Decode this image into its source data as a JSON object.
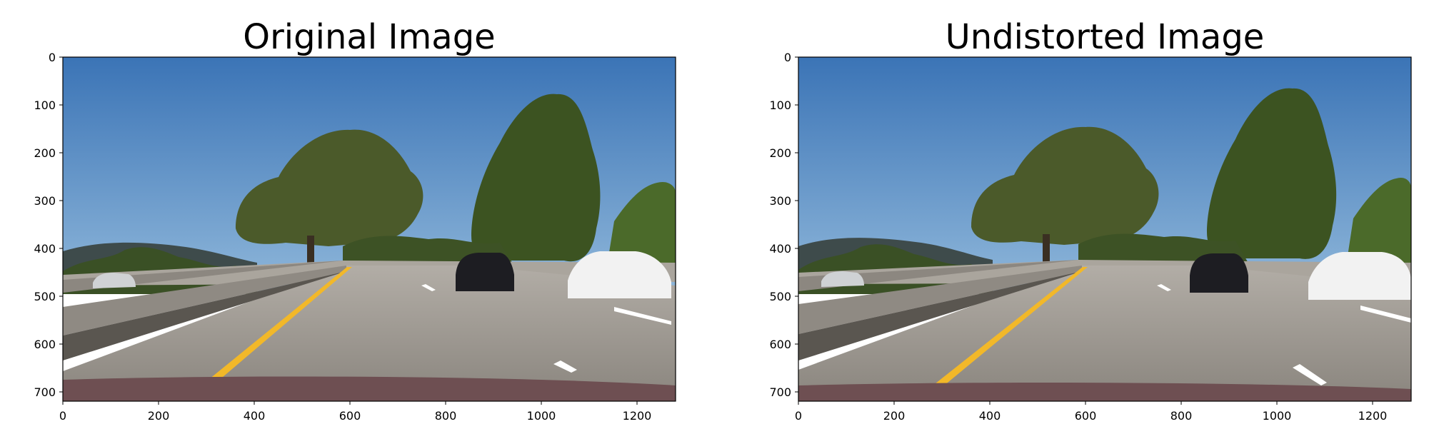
{
  "panels": [
    {
      "title": "Original Image",
      "x_ticks": [
        "0",
        "200",
        "400",
        "600",
        "800",
        "1000",
        "1200"
      ],
      "y_ticks": [
        "0",
        "100",
        "200",
        "300",
        "400",
        "500",
        "600",
        "700"
      ]
    },
    {
      "title": "Undistorted Image",
      "x_ticks": [
        "0",
        "200",
        "400",
        "600",
        "800",
        "1000",
        "1200"
      ],
      "y_ticks": [
        "0",
        "100",
        "200",
        "300",
        "400",
        "500",
        "600",
        "700"
      ]
    }
  ],
  "colors": {
    "sky": "#3f79b8",
    "hills": "#3c4a4a",
    "foliage": "#3f5326",
    "road": "#9a948c",
    "barrier": "#8e8983",
    "lane_yellow": "#f2b829",
    "lane_white": "#ffffff",
    "hood": "#6e4f52"
  },
  "icons": {
    "scene": "highway-road-scene-photo"
  }
}
